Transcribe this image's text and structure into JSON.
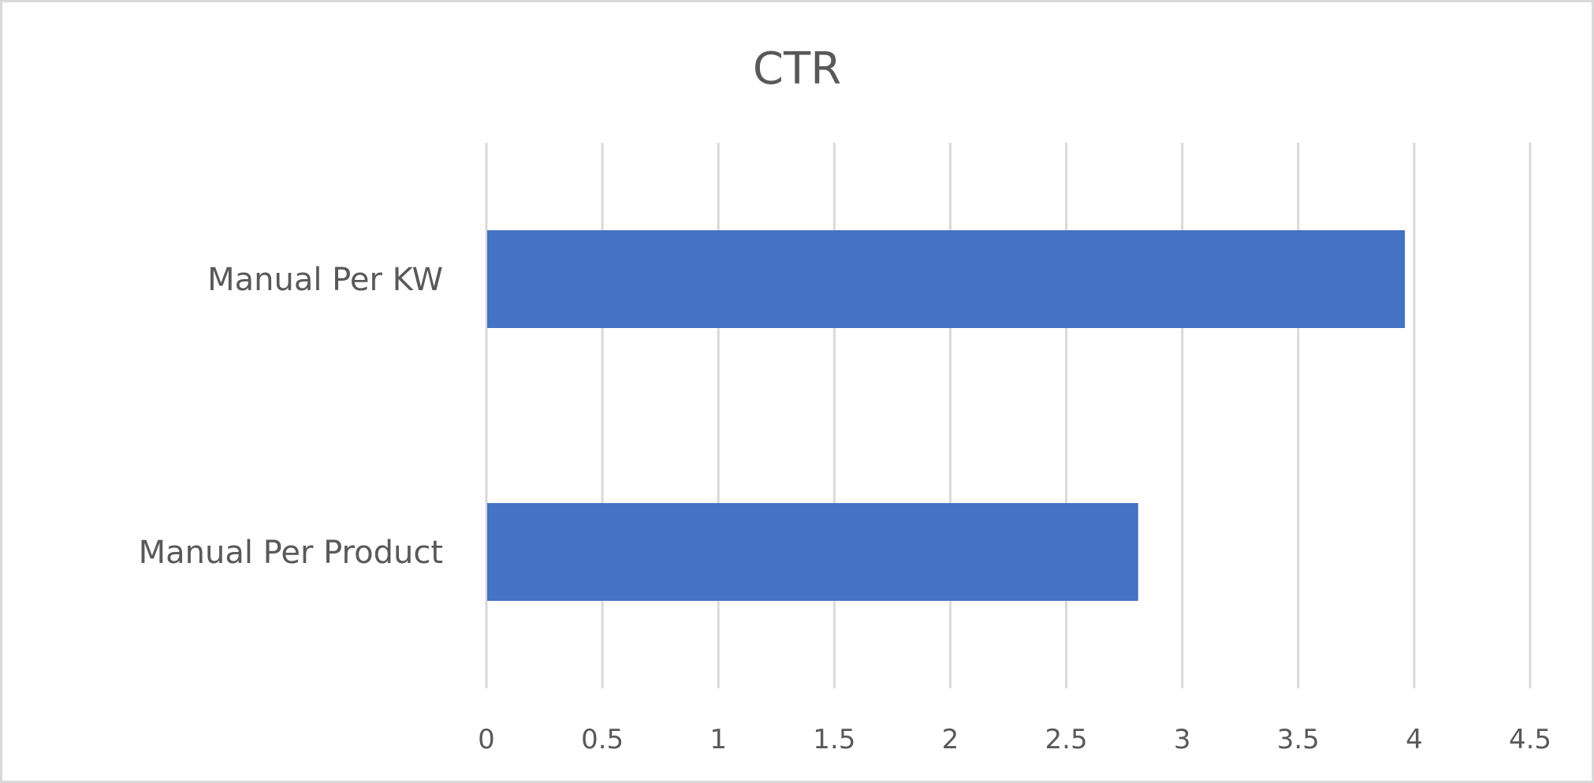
{
  "chart_data": {
    "type": "bar",
    "orientation": "horizontal",
    "title": "CTR",
    "categories": [
      "Manual Per KW",
      "Manual Per Product"
    ],
    "values": [
      3.96,
      2.81
    ],
    "xlim": [
      0,
      4.5
    ],
    "x_ticks": [
      "0",
      "0.5",
      "1",
      "1.5",
      "2",
      "2.5",
      "3",
      "3.5",
      "4",
      "4.5"
    ],
    "grid": "vertical",
    "legend": "none",
    "bar_color": "#4472C4",
    "xlabel": "",
    "ylabel": ""
  }
}
